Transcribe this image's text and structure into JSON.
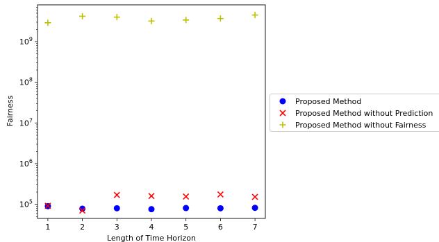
{
  "chart_data": {
    "type": "scatter",
    "title": "",
    "xlabel": "Length of Time Horizon",
    "ylabel": "Fairness",
    "yscale": "log",
    "xlim": [
      0.7,
      7.3
    ],
    "ylim": [
      45000,
      8000000000
    ],
    "x_ticks": [
      1,
      2,
      3,
      4,
      5,
      6,
      7
    ],
    "y_ticks": [
      100000,
      1000000,
      10000000,
      100000000,
      1000000000
    ],
    "y_tick_labels": [
      {
        "base": "10",
        "exp": "5"
      },
      {
        "base": "10",
        "exp": "6"
      },
      {
        "base": "10",
        "exp": "7"
      },
      {
        "base": "10",
        "exp": "8"
      },
      {
        "base": "10",
        "exp": "9"
      }
    ],
    "grid": false,
    "legend_position": "outside-right",
    "series": [
      {
        "name": "Proposed Method",
        "marker": "circle",
        "color": "#0000ff",
        "x": [
          1,
          2,
          3,
          4,
          5,
          6,
          7
        ],
        "y": [
          90000,
          78000,
          80000,
          76000,
          81000,
          80000,
          82000
        ]
      },
      {
        "name": "Proposed Method without Prediction",
        "marker": "x",
        "color": "#ff0000",
        "x": [
          1,
          2,
          3,
          4,
          5,
          6,
          7
        ],
        "y": [
          92000,
          70000,
          170000,
          160000,
          155000,
          175000,
          152000
        ]
      },
      {
        "name": "Proposed Method without Fairness",
        "marker": "plus",
        "color": "#bfbf00",
        "x": [
          1,
          2,
          3,
          4,
          5,
          6,
          7
        ],
        "y": [
          2900000000,
          4200000000,
          4000000000,
          3200000000,
          3400000000,
          3700000000,
          4500000000
        ]
      }
    ]
  }
}
